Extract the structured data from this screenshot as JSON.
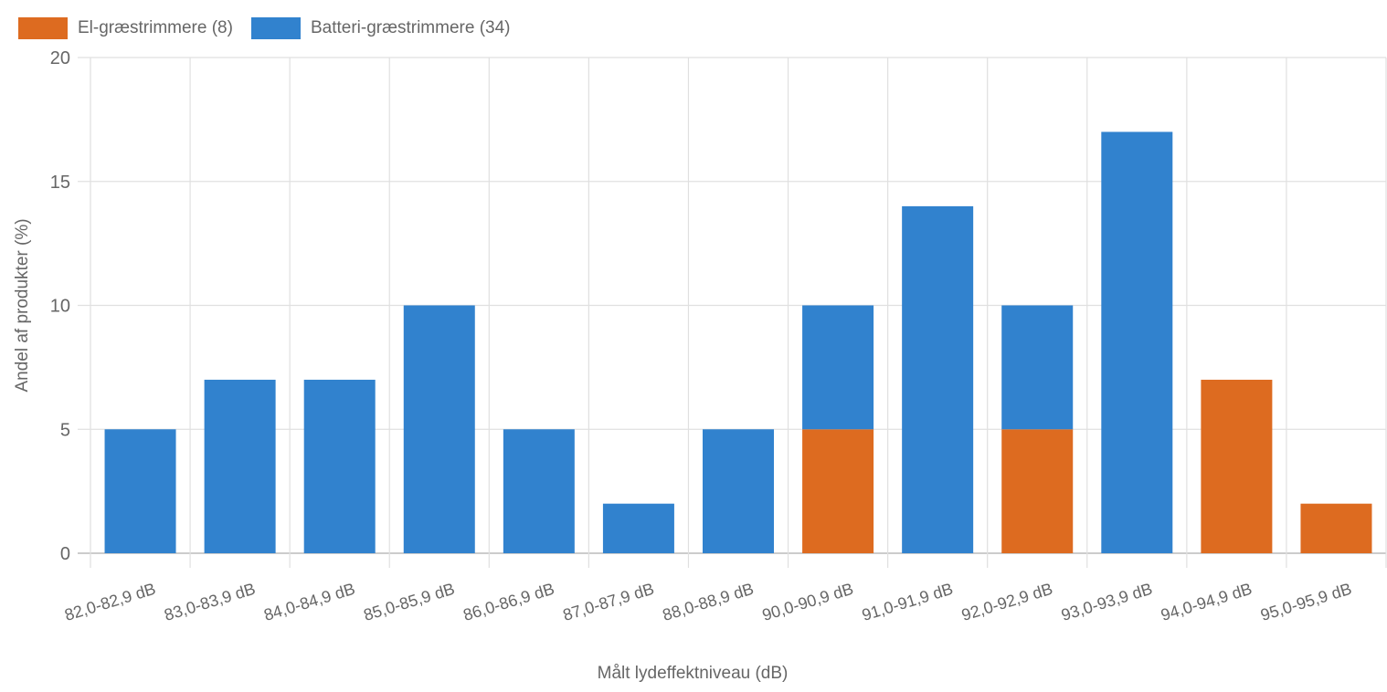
{
  "legend": [
    {
      "label": "El-græstrimmere (8)",
      "color": "#DD6B20"
    },
    {
      "label": "Batteri-græstrimmere (34)",
      "color": "#3182CE"
    }
  ],
  "chart_data": {
    "type": "bar",
    "stacked": true,
    "title": "",
    "xlabel": "Målt lydeffektniveau (dB)",
    "ylabel": "Andel af produkter (%)",
    "ylim": [
      0,
      20
    ],
    "yticks": [
      0,
      5,
      10,
      15,
      20
    ],
    "grid": true,
    "legend_position": "top-left",
    "categories": [
      "82,0-82,9 dB",
      "83,0-83,9 dB",
      "84,0-84,9 dB",
      "85,0-85,9 dB",
      "86,0-86,9 dB",
      "87,0-87,9 dB",
      "88,0-88,9 dB",
      "90,0-90,9 dB",
      "91,0-91,9 dB",
      "92,0-92,9 dB",
      "93,0-93,9 dB",
      "94,0-94,9 dB",
      "95,0-95,9 dB"
    ],
    "series": [
      {
        "name": "El-græstrimmere (8)",
        "color": "#DD6B20",
        "values": [
          0,
          0,
          0,
          0,
          0,
          0,
          0,
          5,
          0,
          5,
          0,
          7,
          2
        ]
      },
      {
        "name": "Batteri-græstrimmere (34)",
        "color": "#3182CE",
        "values": [
          5,
          7,
          7,
          10,
          5,
          2,
          5,
          5,
          14,
          5,
          17,
          0,
          0
        ]
      }
    ]
  }
}
